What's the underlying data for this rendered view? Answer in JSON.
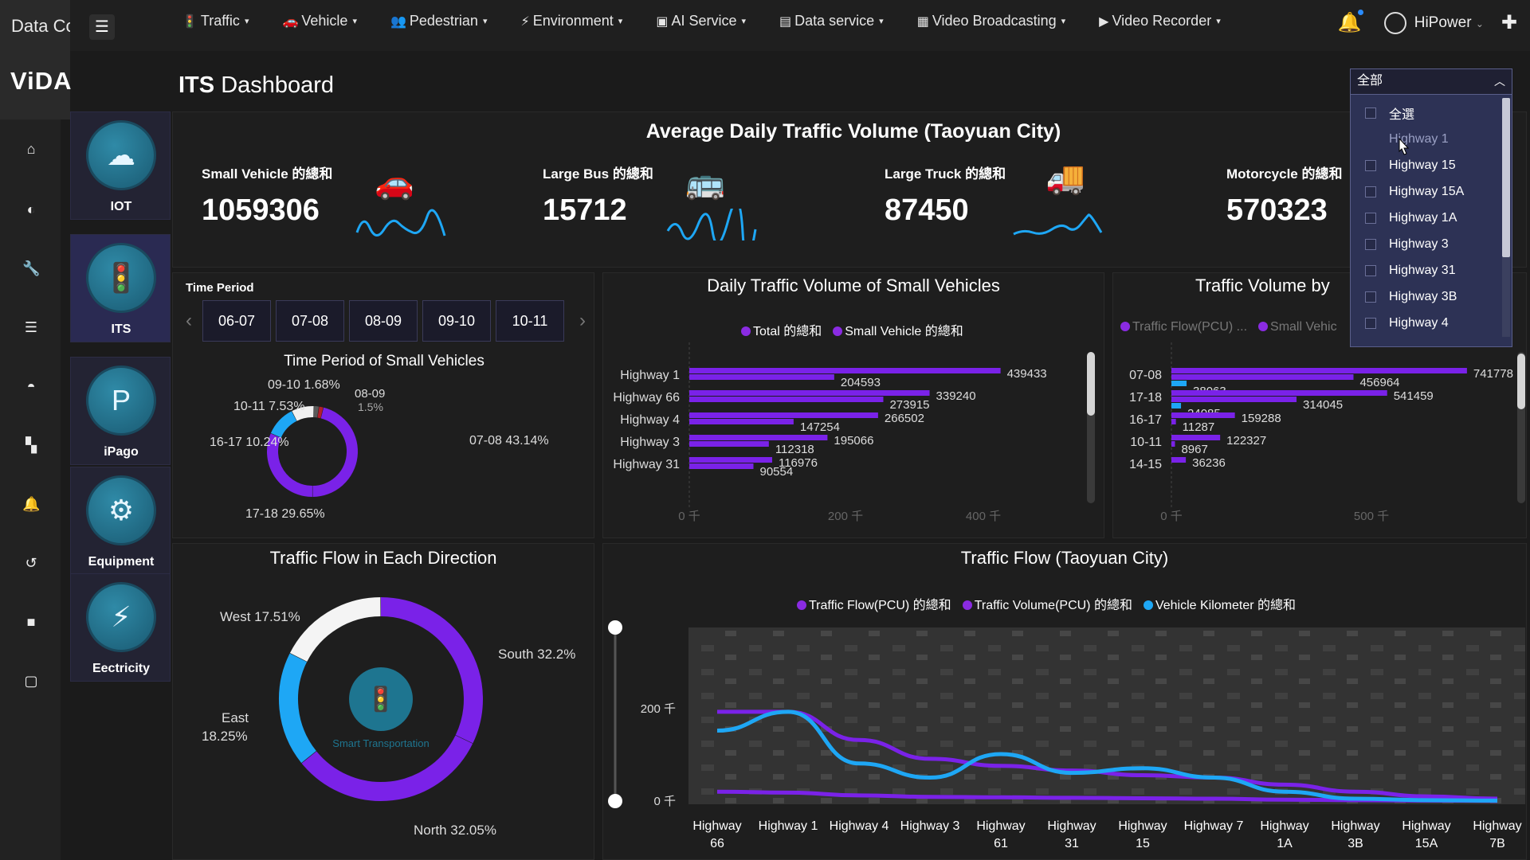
{
  "brand": {
    "top_text": "Data Collecti",
    "logo": "ViDA"
  },
  "nav": {
    "items": [
      {
        "icon": "traffic-light-icon",
        "label": "Traffic"
      },
      {
        "icon": "car-icon",
        "label": "Vehicle"
      },
      {
        "icon": "pedestrian-icon",
        "label": "Pedestrian"
      },
      {
        "icon": "environment-icon",
        "label": "Environment"
      },
      {
        "icon": "ai-icon",
        "label": "AI Service"
      },
      {
        "icon": "data-icon",
        "label": "Data service"
      },
      {
        "icon": "broadcast-icon",
        "label": "Video Broadcasting"
      },
      {
        "icon": "recorder-icon",
        "label": "Video Recorder"
      }
    ],
    "user": "HiPower"
  },
  "apps": [
    {
      "label": "IOT",
      "icon": "iot-icon"
    },
    {
      "label": "ITS",
      "icon": "its-icon"
    },
    {
      "label": "iPago",
      "icon": "parking-icon"
    },
    {
      "label": "Equipment",
      "icon": "equipment-icon"
    },
    {
      "label": "Eectricity",
      "icon": "electricity-icon"
    }
  ],
  "page": {
    "title_bold": "ITS",
    "title_rest": "Dashboard"
  },
  "summary": {
    "title": "Average Daily Traffic Volume (Taoyuan City)",
    "kpis": [
      {
        "label": "Small Vehicle 的總和",
        "value": "1059306",
        "icon": "car-icon"
      },
      {
        "label": "Large Bus 的總和",
        "value": "15712",
        "icon": "bus-icon"
      },
      {
        "label": "Large Truck 的總和",
        "value": "87450",
        "icon": "truck-icon"
      },
      {
        "label": "Motorcycle 的總和",
        "value": "570323",
        "icon": "motorcycle-icon"
      }
    ]
  },
  "time_period": {
    "label": "Time Period",
    "buttons": [
      "06-07",
      "07-08",
      "08-09",
      "09-10",
      "10-11"
    ]
  },
  "donut_small": {
    "title": "Time Period of Small Vehicles",
    "labels": [
      {
        "text": "09-10 1.68%"
      },
      {
        "text": "08-09"
      },
      {
        "text": "1.5%"
      },
      {
        "text": "10-11 7.53%"
      },
      {
        "text": "16-17 10.24%"
      },
      {
        "text": "07-08 43.14%"
      },
      {
        "text": "17-18 29.65%"
      }
    ]
  },
  "daily_small": {
    "title": "Daily Traffic Volume of Small Vehicles",
    "legend": [
      {
        "label": "Total 的總和",
        "color": "#8a2be2"
      },
      {
        "label": "Small Vehicle 的總和",
        "color": "#8a2be2"
      }
    ],
    "axis_ticks": [
      "0 千",
      "200 千",
      "400 千"
    ]
  },
  "traffic_by": {
    "title": "Traffic Volume by",
    "legend": [
      {
        "label": "Traffic Flow(PCU) ...",
        "color": "#8a2be2"
      },
      {
        "label": "Small Vehic",
        "color": "#8a2be2"
      }
    ],
    "axis_ticks": [
      "0 千",
      "500 千"
    ]
  },
  "direction": {
    "title": "Traffic Flow in Each Direction",
    "center_text": "Smart Transportation",
    "labels": [
      {
        "text": "West 17.51%"
      },
      {
        "text": "South 32.2%"
      },
      {
        "text": "East"
      },
      {
        "text": "18.25%"
      },
      {
        "text": "North 32.05%"
      }
    ]
  },
  "flow_city": {
    "title": "Traffic Flow (Taoyuan City)",
    "legend": [
      {
        "label": "Traffic Flow(PCU) 的總和",
        "color": "#8a2be2"
      },
      {
        "label": "Traffic Volume(PCU) 的總和",
        "color": "#8a2be2"
      },
      {
        "label": "Vehicle Kilometer 的總和",
        "color": "#1ea7f5"
      }
    ],
    "y_ticks": [
      "200 千",
      "0 千"
    ],
    "x_labels": [
      [
        "Highway",
        "66"
      ],
      [
        "Highway 1",
        ""
      ],
      [
        "Highway 4",
        ""
      ],
      [
        "Highway 3",
        ""
      ],
      [
        "Highway",
        "61"
      ],
      [
        "Highway",
        "31"
      ],
      [
        "Highway",
        "15"
      ],
      [
        "Highway 7",
        ""
      ],
      [
        "Highway",
        "1A"
      ],
      [
        "Highway",
        "3B"
      ],
      [
        "Highway",
        "15A"
      ],
      [
        "Highway",
        "7B"
      ]
    ]
  },
  "dropdown": {
    "selected": "全部",
    "items": [
      {
        "label": "全選"
      },
      {
        "label": "Highway 1"
      },
      {
        "label": "Highway 15"
      },
      {
        "label": "Highway 15A"
      },
      {
        "label": "Highway 1A"
      },
      {
        "label": "Highway 3"
      },
      {
        "label": "Highway 31"
      },
      {
        "label": "Highway 3B"
      },
      {
        "label": "Highway 4"
      }
    ]
  },
  "chart_data": [
    {
      "type": "pie",
      "title": "Time Period of Small Vehicles",
      "categories": [
        "07-08",
        "17-18",
        "16-17",
        "10-11",
        "09-10",
        "08-09"
      ],
      "values": [
        43.14,
        29.65,
        10.24,
        7.53,
        1.68,
        1.5
      ],
      "unit": "%"
    },
    {
      "type": "bar",
      "title": "Daily Traffic Volume of Small Vehicles",
      "categories": [
        "Highway 1",
        "Highway 66",
        "Highway 4",
        "Highway 3",
        "Highway 31"
      ],
      "series": [
        {
          "name": "Total 的總和",
          "values": [
            439433,
            339240,
            266502,
            195066,
            116976
          ]
        },
        {
          "name": "Small Vehicle 的總和",
          "values": [
            204593,
            273915,
            147254,
            112318,
            90554
          ]
        }
      ],
      "xlim": [
        0,
        450000
      ]
    },
    {
      "type": "bar",
      "title": "Traffic Volume by",
      "categories": [
        "07-08",
        "17-18",
        "16-17",
        "10-11",
        "14-15"
      ],
      "series": [
        {
          "name": "Traffic Flow(PCU) ...",
          "values": [
            741778,
            541459,
            159288,
            122327,
            36236
          ]
        },
        {
          "name": "Small Vehic",
          "values": [
            456964,
            314045,
            11287,
            8967,
            null
          ]
        },
        {
          "values": [
            38063,
            24085,
            null,
            null,
            null
          ]
        }
      ],
      "xlim": [
        0,
        800000
      ]
    },
    {
      "type": "pie",
      "title": "Traffic Flow in Each Direction",
      "categories": [
        "South",
        "North",
        "East",
        "West"
      ],
      "values": [
        32.2,
        32.05,
        18.25,
        17.51
      ],
      "unit": "%"
    },
    {
      "type": "line",
      "title": "Traffic Flow (Taoyuan City)",
      "categories": [
        "Highway 66",
        "Highway 1",
        "Highway 4",
        "Highway 3",
        "Highway 61",
        "Highway 31",
        "Highway 15",
        "Highway 7",
        "Highway 1A",
        "Highway 3B",
        "Highway 15A",
        "Highway 7B"
      ],
      "series": [
        {
          "name": "Traffic Flow(PCU) 的總和",
          "values": [
            190000,
            190000,
            130000,
            90000,
            75000,
            65000,
            55000,
            50000,
            35000,
            20000,
            10000,
            5000
          ]
        },
        {
          "name": "Traffic Volume(PCU) 的總和",
          "values": [
            20000,
            18000,
            12000,
            9000,
            8000,
            7000,
            6000,
            5000,
            3000,
            2000,
            1000,
            500
          ]
        },
        {
          "name": "Vehicle Kilometer 的總和",
          "values": [
            150000,
            190000,
            80000,
            50000,
            100000,
            60000,
            70000,
            50000,
            20000,
            5000,
            2000,
            1000
          ]
        }
      ],
      "ylim": [
        0,
        200000
      ]
    }
  ]
}
